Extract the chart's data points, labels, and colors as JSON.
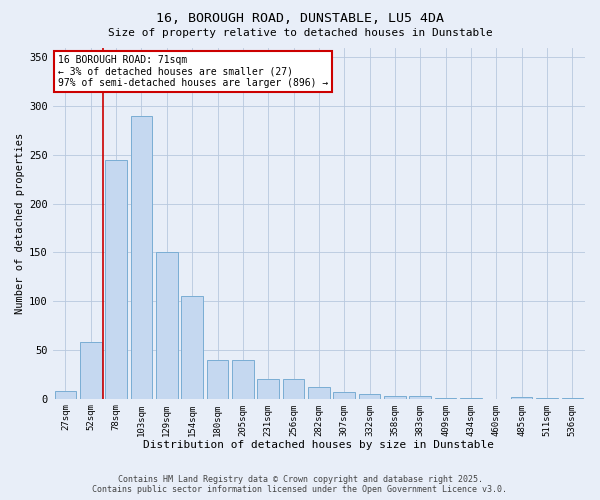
{
  "title_line1": "16, BOROUGH ROAD, DUNSTABLE, LU5 4DA",
  "title_line2": "Size of property relative to detached houses in Dunstable",
  "xlabel": "Distribution of detached houses by size in Dunstable",
  "ylabel": "Number of detached properties",
  "bar_labels": [
    "27sqm",
    "52sqm",
    "78sqm",
    "103sqm",
    "129sqm",
    "154sqm",
    "180sqm",
    "205sqm",
    "231sqm",
    "256sqm",
    "282sqm",
    "307sqm",
    "332sqm",
    "358sqm",
    "383sqm",
    "409sqm",
    "434sqm",
    "460sqm",
    "485sqm",
    "511sqm",
    "536sqm"
  ],
  "bar_values": [
    8,
    58,
    245,
    290,
    150,
    105,
    40,
    40,
    20,
    20,
    12,
    7,
    5,
    3,
    3,
    1,
    1,
    0,
    2,
    1,
    1
  ],
  "bar_color": "#c5d8f0",
  "bar_edge_color": "#7aadd4",
  "background_color": "#e8eef8",
  "grid_color": "#b8c8de",
  "vline_color": "#cc0000",
  "annotation_text": "16 BOROUGH ROAD: 71sqm\n← 3% of detached houses are smaller (27)\n97% of semi-detached houses are larger (896) →",
  "annotation_box_facecolor": "#ffffff",
  "annotation_box_edge": "#cc0000",
  "ylim": [
    0,
    360
  ],
  "yticks": [
    0,
    50,
    100,
    150,
    200,
    250,
    300,
    350
  ],
  "footer_line1": "Contains HM Land Registry data © Crown copyright and database right 2025.",
  "footer_line2": "Contains public sector information licensed under the Open Government Licence v3.0."
}
